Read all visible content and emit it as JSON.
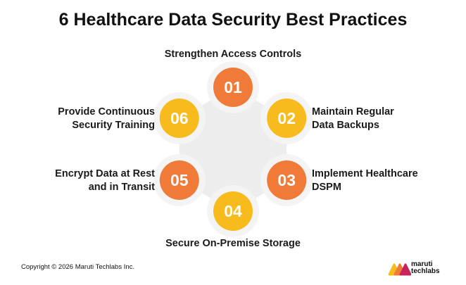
{
  "title": "6 Healthcare Data Security Best Practices",
  "steps": [
    {
      "number": "01",
      "label_lines": [
        "Strengthen Access Controls"
      ],
      "color": "#f07b38"
    },
    {
      "number": "02",
      "label_lines": [
        "Maintain Regular",
        "Data Backups"
      ],
      "color": "#f8bb1e"
    },
    {
      "number": "03",
      "label_lines": [
        "Implement Healthcare",
        "DSPM"
      ],
      "color": "#f07b38"
    },
    {
      "number": "04",
      "label_lines": [
        "Secure On-Premise Storage"
      ],
      "color": "#f8bb1e"
    },
    {
      "number": "05",
      "label_lines": [
        "Encrypt Data at Rest",
        "and in Transit"
      ],
      "color": "#f07b38"
    },
    {
      "number": "06",
      "label_lines": [
        "Provide Continuous",
        "Security Training"
      ],
      "color": "#f8bb1e"
    }
  ],
  "footer": {
    "copyright": "Copyright © 2026 Maruti Techlabs Inc.",
    "logo_line1": "maruti",
    "logo_line2": "techlabs"
  }
}
